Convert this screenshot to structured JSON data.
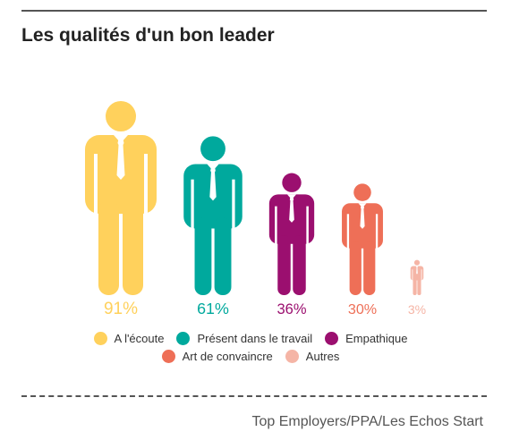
{
  "title": "Les qualités d'un bon leader",
  "source": "Top Employers/PPA/Les Echos Start",
  "chart_data": {
    "type": "pictogram",
    "title": "Les qualités d'un bon leader",
    "series": [
      {
        "name": "A l'écoute",
        "value": 91,
        "label": "91%",
        "color": "#FFD15C"
      },
      {
        "name": "Présent dans le travail",
        "value": 61,
        "label": "61%",
        "color": "#00A99D"
      },
      {
        "name": "Empathique",
        "value": 36,
        "label": "36%",
        "color": "#9B0F6F"
      },
      {
        "name": "Art de convaincre",
        "value": 30,
        "label": "30%",
        "color": "#EE6F57"
      },
      {
        "name": "Autres",
        "value": 3,
        "label": "3%",
        "color": "#F5B5A6"
      }
    ],
    "legend_position": "bottom-center"
  }
}
